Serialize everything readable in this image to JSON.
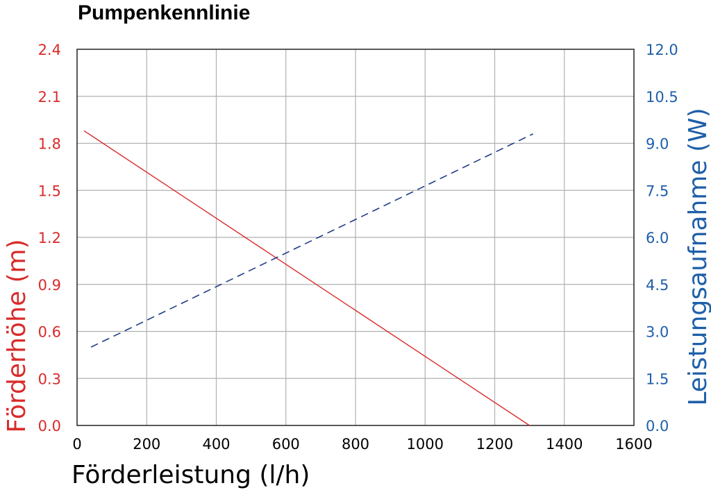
{
  "chart_data": {
    "type": "line",
    "title": "Pumpenkennlinie",
    "xlabel": "Förderleistung (l/h)",
    "ylabel_left": "Förderhöhe (m)",
    "ylabel_right": "Leistungsaufnahme (W)",
    "xlim": [
      0,
      1600
    ],
    "ylim_left": [
      0,
      2.4
    ],
    "ylim_right": [
      0,
      12
    ],
    "x_ticks": [
      "0",
      "200",
      "400",
      "600",
      "800",
      "1000",
      "1200",
      "1400",
      "1600"
    ],
    "y_left_ticks": [
      "0.0",
      "0.3",
      "0.6",
      "0.9",
      "1.2",
      "1.5",
      "1.8",
      "2.1",
      "2.4"
    ],
    "y_right_ticks": [
      "0.0",
      "1.5",
      "3.0",
      "4.5",
      "6.0",
      "7.5",
      "9.0",
      "10.5",
      "12.0"
    ],
    "grid": true,
    "series": [
      {
        "axis": "left",
        "color": "#d92b2b",
        "style": "solid",
        "x": [
          20,
          1300
        ],
        "y": [
          1.88,
          0.0
        ]
      },
      {
        "axis": "right",
        "color": "#1f3c88",
        "style": "dashed",
        "x": [
          40,
          1310
        ],
        "y": [
          2.5,
          9.3
        ]
      }
    ],
    "colors": {
      "left_axis": "#d92b2b",
      "right_axis": "#1f5fa8",
      "grid": "#b0b0b0",
      "frame": "#222222"
    }
  }
}
